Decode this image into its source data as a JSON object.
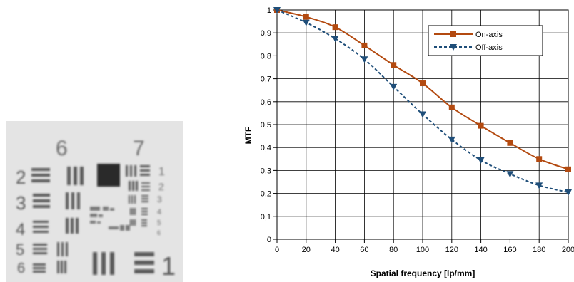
{
  "target": {
    "group_labels": [
      "6",
      "7"
    ],
    "element_labels_left": [
      "2",
      "3",
      "4",
      "5",
      "6"
    ],
    "element_labels_right": [
      "1",
      "2",
      "3",
      "4",
      "5",
      "6"
    ],
    "big_number": "1"
  },
  "chart_data": {
    "type": "line",
    "title": "",
    "xlabel": "Spatial frequency [lp/mm]",
    "ylabel": "MTF",
    "xlim": [
      0,
      200
    ],
    "ylim": [
      0,
      1
    ],
    "x_ticks": [
      "0",
      "20",
      "40",
      "60",
      "80",
      "100",
      "120",
      "140",
      "160",
      "180",
      "200"
    ],
    "y_ticks": [
      "0",
      "0,1",
      "0,2",
      "0,3",
      "0,4",
      "0,5",
      "0,6",
      "0,7",
      "0,8",
      "0,9",
      "1"
    ],
    "grid": true,
    "legend_position": "top-right",
    "x": [
      0,
      20,
      40,
      60,
      80,
      100,
      120,
      140,
      160,
      180,
      200
    ],
    "series": [
      {
        "name": "On-axis",
        "color": "#b34a10",
        "marker": "square",
        "line": "solid",
        "values": [
          1.0,
          0.97,
          0.925,
          0.845,
          0.76,
          0.68,
          0.575,
          0.495,
          0.42,
          0.35,
          0.305
        ]
      },
      {
        "name": "Off-axis",
        "color": "#1f4e79",
        "marker": "triangle-down",
        "line": "dashed",
        "values": [
          1.0,
          0.945,
          0.875,
          0.785,
          0.665,
          0.545,
          0.435,
          0.345,
          0.285,
          0.235,
          0.205
        ]
      }
    ]
  }
}
